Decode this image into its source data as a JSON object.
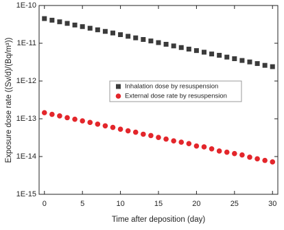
{
  "chart_data": {
    "type": "scatter",
    "x_label": "Time after deposition (day)",
    "y_label": "Exposure dose rate ((Sv/d)/(Bq/m³))",
    "y_scale": "log",
    "legend": "center",
    "x": [
      0,
      1,
      2,
      3,
      4,
      5,
      6,
      7,
      8,
      9,
      10,
      11,
      12,
      13,
      14,
      15,
      16,
      17,
      18,
      19,
      20,
      21,
      22,
      23,
      24,
      25,
      26,
      27,
      28,
      29,
      30
    ],
    "series": [
      {
        "name": "Inhalation dose by resuspension",
        "color": "#3b3b3b",
        "marker": "square",
        "values": [
          4.5e-11,
          4.08e-11,
          3.7e-11,
          3.36e-11,
          3.04e-11,
          2.76e-11,
          2.5e-11,
          2.27e-11,
          2.06e-11,
          1.87e-11,
          1.69e-11,
          1.53e-11,
          1.39e-11,
          1.26e-11,
          1.15e-11,
          1.04e-11,
          9.4e-12,
          8.5e-12,
          7.7e-12,
          7e-12,
          6.4e-12,
          5.8e-12,
          5.2e-12,
          4.8e-12,
          4.3e-12,
          3.9e-12,
          3.5e-12,
          3.2e-12,
          2.9e-12,
          2.6e-12,
          2.4e-12
        ]
      },
      {
        "name": "External dose rate by resuspension",
        "color": "#e3262b",
        "marker": "circle",
        "values": [
          1.45e-13,
          1.31e-13,
          1.19e-13,
          1.07e-13,
          9.7e-14,
          8.8e-14,
          8e-14,
          7.2e-14,
          6.5e-14,
          5.9e-14,
          5.3e-14,
          4.8e-14,
          4.4e-14,
          3.9e-14,
          3.6e-14,
          3.2e-14,
          2.9e-14,
          2.6e-14,
          2.4e-14,
          2.2e-14,
          1.9e-14,
          1.8e-14,
          1.6e-14,
          1.4e-14,
          1.3e-14,
          1.2e-14,
          1.1e-14,
          9.6e-15,
          8.7e-15,
          7.9e-15,
          7.2e-15
        ]
      }
    ],
    "xlim": [
      -0.7,
      30.7
    ],
    "xticks": [
      0,
      5,
      10,
      15,
      20,
      25,
      30
    ],
    "ylim": [
      1e-15,
      1e-10
    ],
    "yticks": [
      {
        "value": 1e-15,
        "label": "1E-15"
      },
      {
        "value": 1e-14,
        "label": "1E-14"
      },
      {
        "value": 1e-13,
        "label": "1E-13"
      },
      {
        "value": 1e-12,
        "label": "1E-12"
      },
      {
        "value": 1e-11,
        "label": "1E-11"
      },
      {
        "value": 1e-10,
        "label": "1E-10"
      }
    ]
  }
}
